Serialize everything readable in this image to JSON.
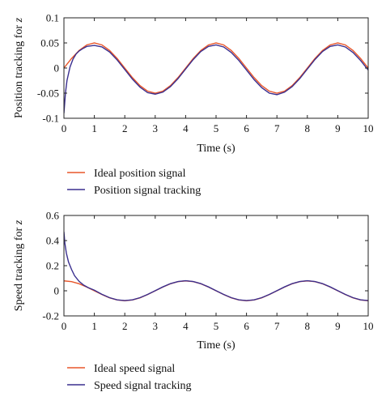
{
  "chart_data": [
    {
      "type": "line",
      "xlabel": "Time (s)",
      "ylabel": "Position tracking for z",
      "xlim": [
        0,
        10
      ],
      "ylim": [
        -0.1,
        0.1
      ],
      "xticks": [
        "0",
        "1",
        "2",
        "3",
        "4",
        "5",
        "6",
        "7",
        "8",
        "9",
        "10"
      ],
      "yticks": [
        "0.1",
        "0.05",
        "0",
        "-0.05",
        "-0.1"
      ],
      "legend_position": "bottom",
      "series": [
        {
          "name": "Ideal position signal",
          "color": "#e8562a",
          "x": [
            0,
            0.25,
            0.5,
            0.75,
            1,
            1.25,
            1.5,
            1.75,
            2,
            2.25,
            2.5,
            2.75,
            3,
            3.25,
            3.5,
            3.75,
            4,
            4.25,
            4.5,
            4.75,
            5,
            5.25,
            5.5,
            5.75,
            6,
            6.25,
            6.5,
            6.75,
            7,
            7.25,
            7.5,
            7.75,
            8,
            8.25,
            8.5,
            8.75,
            9,
            9.25,
            9.5,
            9.75,
            10
          ],
          "y": [
            0,
            0.019,
            0.035,
            0.046,
            0.05,
            0.046,
            0.035,
            0.019,
            0,
            -0.019,
            -0.035,
            -0.046,
            -0.05,
            -0.046,
            -0.035,
            -0.019,
            0,
            0.019,
            0.035,
            0.046,
            0.05,
            0.046,
            0.035,
            0.019,
            0,
            -0.019,
            -0.035,
            -0.046,
            -0.05,
            -0.046,
            -0.035,
            -0.019,
            0,
            0.019,
            0.035,
            0.046,
            0.05,
            0.046,
            0.035,
            0.019,
            0
          ]
        },
        {
          "name": "Position signal tracking",
          "color": "#3a2f8f",
          "x": [
            0,
            0.05,
            0.1,
            0.2,
            0.3,
            0.4,
            0.5,
            0.6,
            0.75,
            1,
            1.25,
            1.5,
            1.75,
            2,
            2.25,
            2.5,
            2.75,
            3,
            3.25,
            3.5,
            3.75,
            4,
            4.25,
            4.5,
            4.75,
            5,
            5.25,
            5.5,
            5.75,
            6,
            6.25,
            6.5,
            6.75,
            7,
            7.25,
            7.5,
            7.75,
            8,
            8.25,
            8.5,
            8.75,
            9,
            9.25,
            9.5,
            9.75,
            10
          ],
          "y": [
            -0.09,
            -0.05,
            -0.025,
            0.002,
            0.018,
            0.028,
            0.034,
            0.038,
            0.043,
            0.045,
            0.042,
            0.032,
            0.016,
            -0.003,
            -0.022,
            -0.038,
            -0.049,
            -0.052,
            -0.048,
            -0.037,
            -0.021,
            -0.002,
            0.017,
            0.033,
            0.043,
            0.046,
            0.042,
            0.031,
            0.015,
            -0.004,
            -0.023,
            -0.039,
            -0.05,
            -0.053,
            -0.048,
            -0.037,
            -0.021,
            -0.002,
            0.017,
            0.033,
            0.043,
            0.046,
            0.042,
            0.031,
            0.015,
            -0.004
          ]
        }
      ]
    },
    {
      "type": "line",
      "xlabel": "Time (s)",
      "ylabel": "Speed tracking for z",
      "xlim": [
        0,
        10
      ],
      "ylim": [
        -0.2,
        0.6
      ],
      "xticks": [
        "0",
        "1",
        "2",
        "3",
        "4",
        "5",
        "6",
        "7",
        "8",
        "9",
        "10"
      ],
      "yticks": [
        "0.6",
        "0.4",
        "0.2",
        "0",
        "-0.2"
      ],
      "legend_position": "bottom",
      "series": [
        {
          "name": "Ideal speed signal",
          "color": "#e8562a",
          "x": [
            0,
            0.25,
            0.5,
            0.75,
            1,
            1.25,
            1.5,
            1.75,
            2,
            2.25,
            2.5,
            2.75,
            3,
            3.25,
            3.5,
            3.75,
            4,
            4.25,
            4.5,
            4.75,
            5,
            5.25,
            5.5,
            5.75,
            6,
            6.25,
            6.5,
            6.75,
            7,
            7.25,
            7.5,
            7.75,
            8,
            8.25,
            8.5,
            8.75,
            9,
            9.25,
            9.5,
            9.75,
            10
          ],
          "y": [
            0.079,
            0.073,
            0.056,
            0.03,
            0,
            -0.03,
            -0.056,
            -0.073,
            -0.079,
            -0.073,
            -0.056,
            -0.03,
            0,
            0.03,
            0.056,
            0.073,
            0.079,
            0.073,
            0.056,
            0.03,
            0,
            -0.03,
            -0.056,
            -0.073,
            -0.079,
            -0.073,
            -0.056,
            -0.03,
            0,
            0.03,
            0.056,
            0.073,
            0.079,
            0.073,
            0.056,
            0.03,
            0,
            -0.03,
            -0.056,
            -0.073,
            -0.079
          ]
        },
        {
          "name": "Speed signal tracking",
          "color": "#3a2f8f",
          "x": [
            0,
            0.03,
            0.08,
            0.15,
            0.25,
            0.35,
            0.5,
            0.65,
            0.8,
            1,
            1.25,
            1.5,
            1.75,
            2,
            2.25,
            2.5,
            2.75,
            3,
            3.25,
            3.5,
            3.75,
            4,
            4.25,
            4.5,
            4.75,
            5,
            5.25,
            5.5,
            5.75,
            6,
            6.25,
            6.5,
            6.75,
            7,
            7.25,
            7.5,
            7.75,
            8,
            8.25,
            8.5,
            8.75,
            9,
            9.25,
            9.5,
            9.75,
            10
          ],
          "y": [
            0.47,
            0.38,
            0.3,
            0.23,
            0.17,
            0.12,
            0.075,
            0.045,
            0.025,
            0.005,
            -0.028,
            -0.055,
            -0.072,
            -0.078,
            -0.072,
            -0.055,
            -0.029,
            0.001,
            0.031,
            0.057,
            0.074,
            0.08,
            0.074,
            0.057,
            0.031,
            0.001,
            -0.029,
            -0.055,
            -0.072,
            -0.078,
            -0.072,
            -0.055,
            -0.029,
            0.001,
            0.031,
            0.057,
            0.074,
            0.08,
            0.074,
            0.057,
            0.031,
            0.001,
            -0.029,
            -0.055,
            -0.072,
            -0.078
          ]
        }
      ]
    }
  ]
}
